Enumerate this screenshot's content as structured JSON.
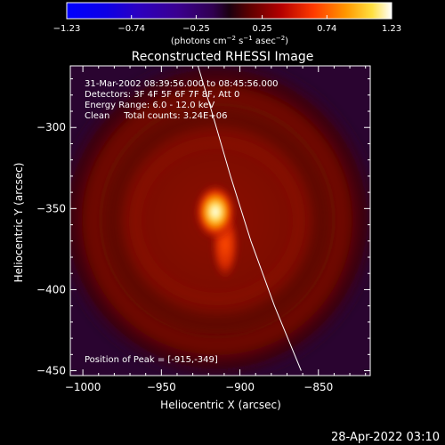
{
  "colorbar": {
    "ticks": [
      {
        "value": -1.23,
        "label": "−1.23"
      },
      {
        "value": -0.74,
        "label": "−0.74"
      },
      {
        "value": -0.25,
        "label": "−0.25"
      },
      {
        "value": 0.25,
        "label": "0.25"
      },
      {
        "value": 0.74,
        "label": "0.74"
      },
      {
        "value": 1.23,
        "label": "1.23"
      }
    ],
    "range": [
      -1.23,
      1.23
    ],
    "unit_parts": {
      "a": "(photons cm",
      "b": "−2",
      "c": " s",
      "d": "−1",
      "e": " asec",
      "f": "−2",
      "g": ")"
    }
  },
  "chart_data": {
    "type": "heatmap",
    "title": "Reconstructed RHESSI Image",
    "xlabel": "Heliocentric X (arcsec)",
    "ylabel": "Heliocentric Y (arcsec)",
    "xlim": [
      -1008,
      -817
    ],
    "ylim": [
      -453,
      -262
    ],
    "x_ticks": [
      {
        "value": -1000,
        "label": "−1000"
      },
      {
        "value": -950,
        "label": "−950"
      },
      {
        "value": -900,
        "label": "−900"
      },
      {
        "value": -850,
        "label": "−850"
      }
    ],
    "y_ticks": [
      {
        "value": -300,
        "label": "−300"
      },
      {
        "value": -350,
        "label": "−350"
      },
      {
        "value": -400,
        "label": "−400"
      },
      {
        "value": -450,
        "label": "−450"
      }
    ],
    "annotations": [
      "31-Mar-2002 08:39:56.000 to 08:45:56.000",
      "Detectors: 3F 4F 5F 6F 7F 8F, Att 0",
      "Energy Range: 6.0 - 12.0 keV",
      "Clean     Total counts: 3.24E+06"
    ],
    "peak_label": "Position of Peak = [-915,-349]",
    "peak": [
      -915,
      -349
    ],
    "limb_line": [
      [
        -928,
        -258
      ],
      [
        -918,
        -290
      ],
      [
        -906,
        -330
      ],
      [
        -893,
        -370
      ],
      [
        -878,
        -410
      ],
      [
        -861,
        -450
      ]
    ],
    "colormap": "heat"
  },
  "footer": {
    "timestamp": "28-Apr-2022 03:10"
  }
}
